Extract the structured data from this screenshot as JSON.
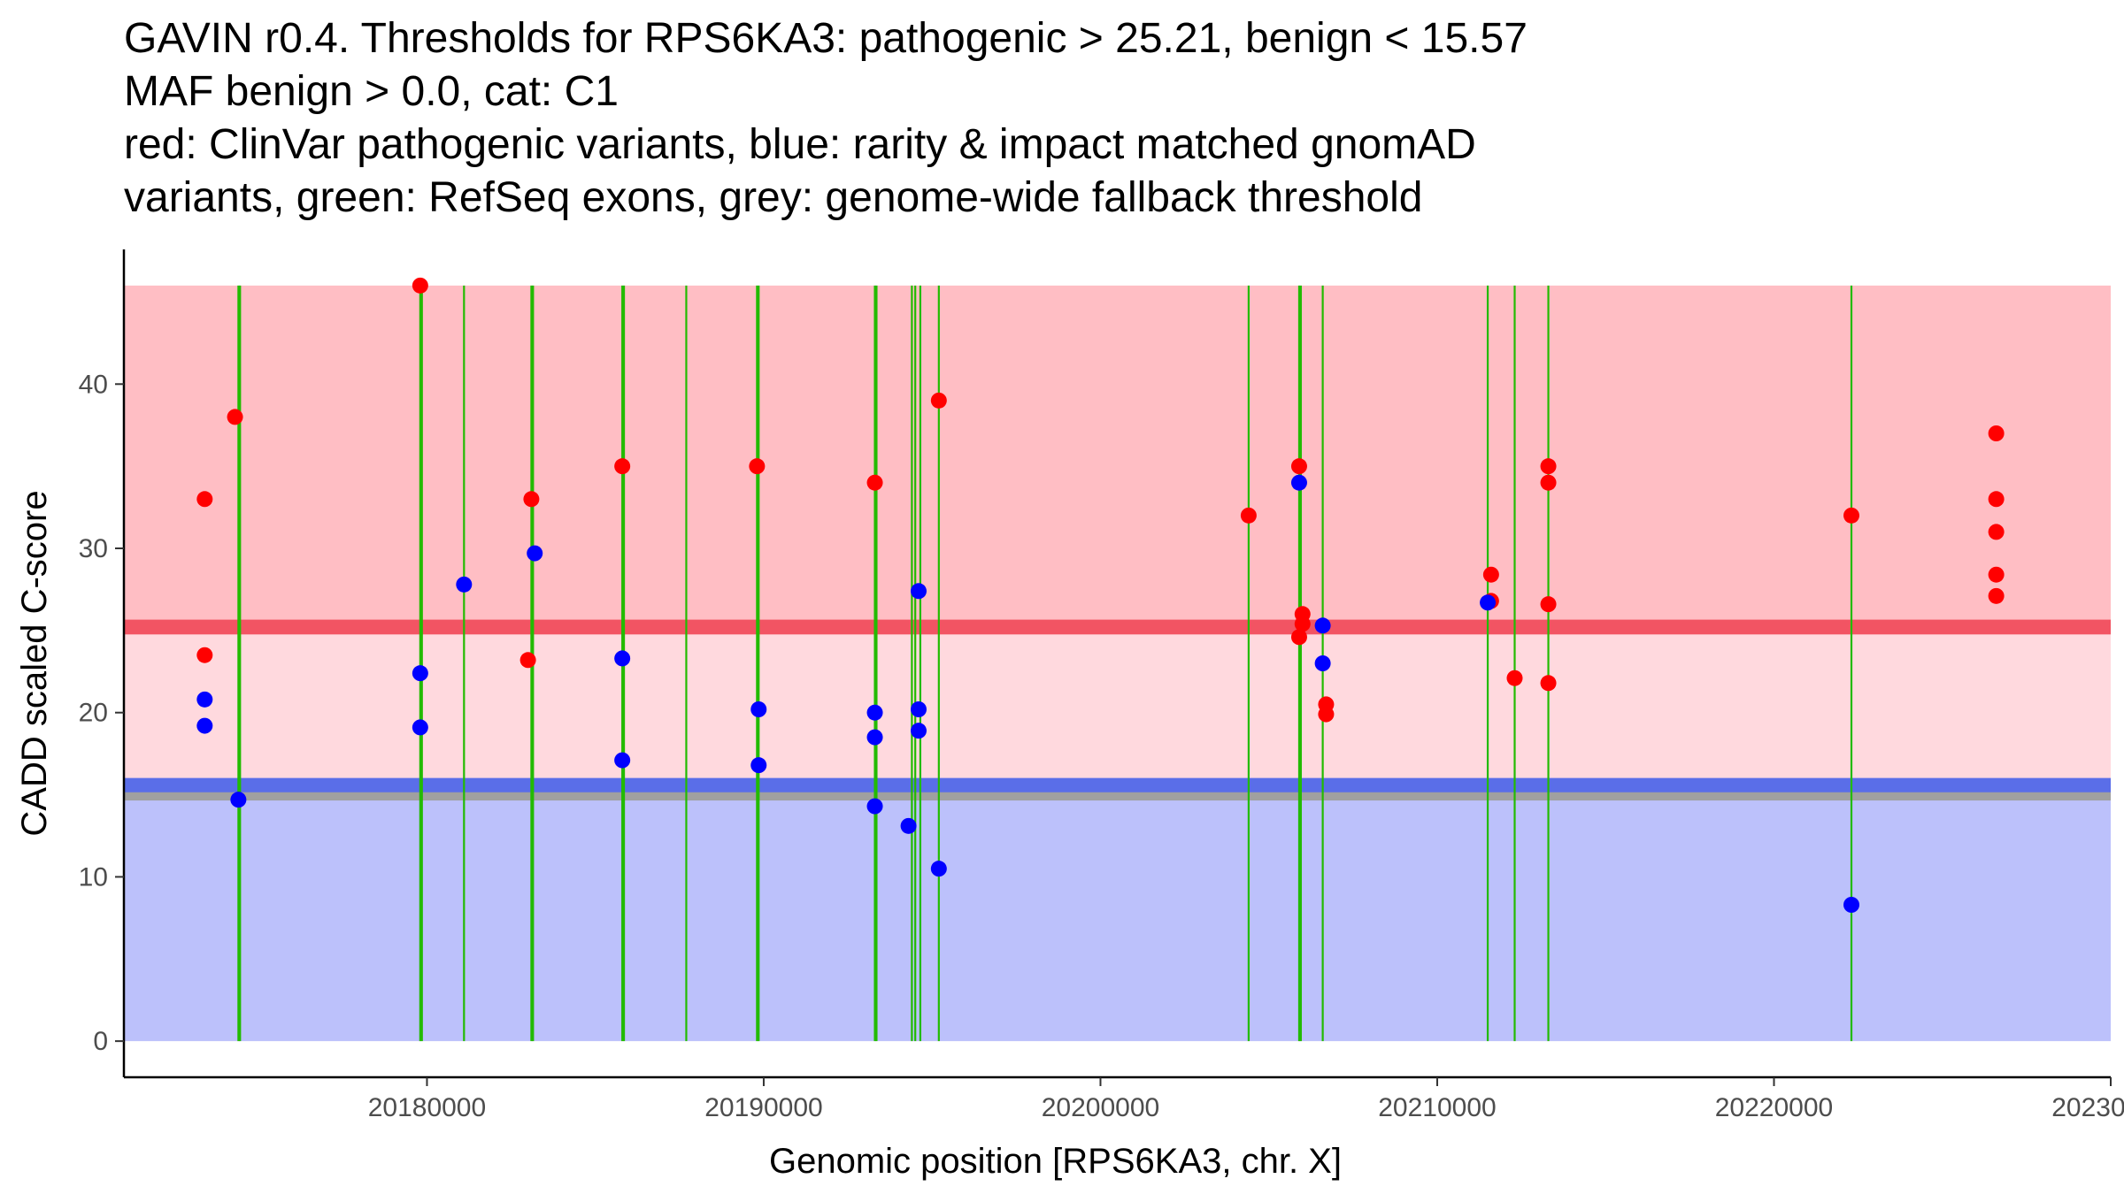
{
  "title_lines": [
    "GAVIN r0.4. Thresholds for RPS6KA3: pathogenic > 25.21, benign < 15.57",
    "MAF benign > 0.0, cat: C1",
    "red: ClinVar pathogenic variants, blue: rarity & impact matched gnomAD",
    "variants, green: RefSeq exons, grey: genome-wide fallback threshold"
  ],
  "chart_data": {
    "type": "scatter",
    "title": "GAVIN r0.4. Thresholds for RPS6KA3: pathogenic > 25.21, benign < 15.57",
    "xlabel": "Genomic position [RPS6KA3, chr. X]",
    "ylabel": "CADD scaled C-score",
    "xlim": [
      20171000,
      20230000
    ],
    "ylim": [
      -2.2,
      48.2
    ],
    "x_ticks": [
      20180000,
      20190000,
      20200000,
      20210000,
      20220000,
      20230000
    ],
    "x_tick_labels": [
      "20180000",
      "20190000",
      "20200000",
      "20210000",
      "20220000",
      "20230000"
    ],
    "y_ticks": [
      0,
      10,
      20,
      30,
      40
    ],
    "y_tick_labels": [
      "0",
      "10",
      "20",
      "30",
      "40"
    ],
    "grid": false,
    "bands": [
      {
        "name": "pathogenic-zone",
        "y0": 25.21,
        "y1": 46,
        "color": "#ffbec4"
      },
      {
        "name": "intermediate-zone",
        "y0": 15.57,
        "y1": 25.21,
        "color": "#ffd9de"
      },
      {
        "name": "benign-zone",
        "y0": 0,
        "y1": 15.57,
        "color": "#bcc1fb"
      }
    ],
    "thresholds": [
      {
        "name": "pathogenic-threshold",
        "y": 25.21,
        "color": "#f25463",
        "width_units": 0.9
      },
      {
        "name": "benign-threshold",
        "y": 15.57,
        "color": "#5a6ee8",
        "width_units": 0.9
      },
      {
        "name": "fallback-threshold",
        "y": 14.9,
        "color": "#a0a0a0",
        "width_units": 0.5
      }
    ],
    "exons": {
      "color": "#22bb00",
      "y_range": [
        0,
        46
      ],
      "positions": [
        20174400,
        20174450,
        20179800,
        20179850,
        20181100,
        20183100,
        20183150,
        20185800,
        20185850,
        20187700,
        20189800,
        20189850,
        20193300,
        20193350,
        20194400,
        20194500,
        20194650,
        20195200,
        20204400,
        20205900,
        20205950,
        20206600,
        20211500,
        20212300,
        20213300,
        20222300
      ]
    },
    "series": [
      {
        "name": "ClinVar pathogenic variants",
        "color": "#ff0000",
        "points": [
          [
            20173400,
            33
          ],
          [
            20173400,
            23.5
          ],
          [
            20174300,
            38
          ],
          [
            20179800,
            46
          ],
          [
            20183100,
            33
          ],
          [
            20183000,
            23.2
          ],
          [
            20185800,
            35
          ],
          [
            20189800,
            35
          ],
          [
            20193300,
            34
          ],
          [
            20195200,
            39
          ],
          [
            20204400,
            32
          ],
          [
            20205900,
            35
          ],
          [
            20206000,
            26
          ],
          [
            20206000,
            25.4
          ],
          [
            20205900,
            24.6
          ],
          [
            20206700,
            20.5
          ],
          [
            20206700,
            19.9
          ],
          [
            20211600,
            28.4
          ],
          [
            20211600,
            26.8
          ],
          [
            20212300,
            22.1
          ],
          [
            20213300,
            35
          ],
          [
            20213300,
            34
          ],
          [
            20213300,
            26.6
          ],
          [
            20213300,
            21.8
          ],
          [
            20222300,
            32
          ],
          [
            20226600,
            37
          ],
          [
            20226600,
            33
          ],
          [
            20226600,
            31
          ],
          [
            20226600,
            28.4
          ],
          [
            20226600,
            27.1
          ]
        ]
      },
      {
        "name": "rarity & impact matched gnomAD variants",
        "color": "#0000ff",
        "points": [
          [
            20173400,
            20.8
          ],
          [
            20173400,
            19.2
          ],
          [
            20174400,
            14.7
          ],
          [
            20179800,
            22.4
          ],
          [
            20179800,
            19.1
          ],
          [
            20181100,
            27.8
          ],
          [
            20183200,
            29.7
          ],
          [
            20185800,
            23.3
          ],
          [
            20185800,
            17.1
          ],
          [
            20189850,
            20.2
          ],
          [
            20189850,
            16.8
          ],
          [
            20193300,
            20
          ],
          [
            20193300,
            18.5
          ],
          [
            20193300,
            14.3
          ],
          [
            20194300,
            13.1
          ],
          [
            20194600,
            27.4
          ],
          [
            20194600,
            20.2
          ],
          [
            20194600,
            18.9
          ],
          [
            20195200,
            10.5
          ],
          [
            20205900,
            34
          ],
          [
            20206600,
            25.3
          ],
          [
            20206600,
            23
          ],
          [
            20211500,
            26.7
          ],
          [
            20222300,
            8.3
          ]
        ]
      }
    ]
  }
}
